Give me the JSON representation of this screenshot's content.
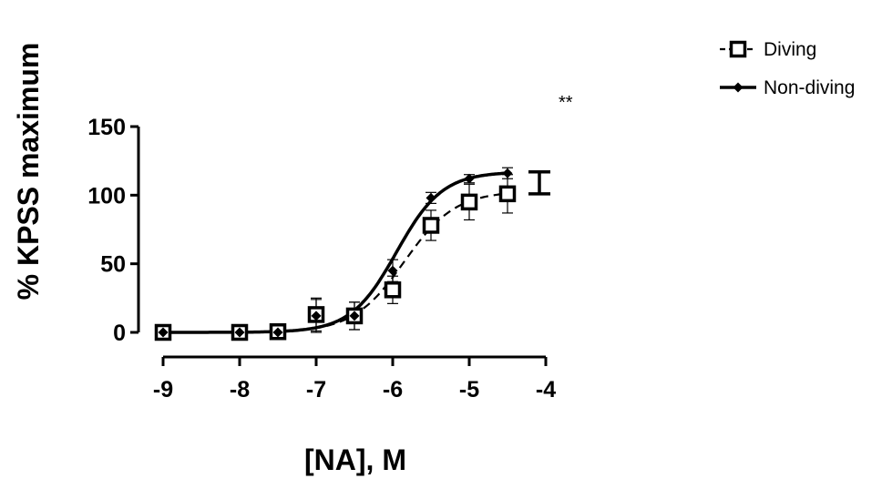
{
  "chart_data": {
    "type": "line",
    "title": "",
    "xlabel": "[NA], M",
    "ylabel": "% KPSS maximum",
    "xlim": [
      -9,
      -4
    ],
    "ylim": [
      0,
      150
    ],
    "x_ticks": [
      "-9",
      "-8",
      "-7",
      "-6",
      "-5",
      "-4"
    ],
    "y_ticks": [
      "0",
      "50",
      "100",
      "150"
    ],
    "grid": false,
    "legend_position": "top-right",
    "significance_label": "**",
    "series": [
      {
        "name": "Diving",
        "marker": "open-square",
        "line_style": "dashed",
        "color": "#000000",
        "x": [
          -9,
          -8,
          -7.5,
          -7,
          -6.5,
          -6,
          -5.5,
          -5,
          -4.5
        ],
        "y": [
          0,
          0,
          0.5,
          13,
          12,
          31,
          78,
          95,
          101
        ],
        "error": [
          0,
          0,
          0,
          12,
          10,
          10,
          11,
          13,
          14
        ],
        "fit": {
          "bottom": 0,
          "top": 103,
          "logEC50": -5.85,
          "hill": 1.3
        }
      },
      {
        "name": "Non-diving",
        "marker": "filled-diamond",
        "line_style": "solid",
        "color": "#000000",
        "x": [
          -9,
          -8,
          -7.5,
          -7,
          -6.5,
          -6,
          -5.5,
          -5,
          -4.5
        ],
        "y": [
          0,
          0,
          0,
          12,
          12,
          45,
          98,
          112,
          116
        ],
        "error": [
          0,
          0,
          0,
          12,
          10,
          8,
          4,
          3,
          4
        ],
        "fit": {
          "bottom": 0,
          "top": 117,
          "logEC50": -5.95,
          "hill": 1.45
        }
      }
    ]
  }
}
